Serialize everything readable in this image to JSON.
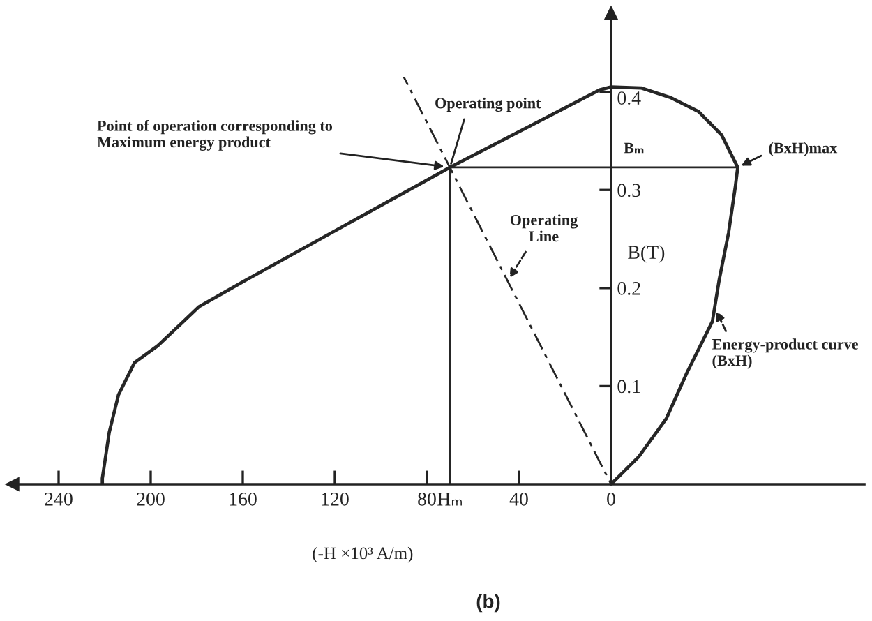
{
  "chart_data": {
    "type": "line",
    "xlabel": "(-H ×10³ A/m)",
    "ylabel": "B(T)",
    "xlim": [
      260,
      -110
    ],
    "ylim": [
      0,
      0.48
    ],
    "xticks": [
      240,
      200,
      160,
      120,
      80,
      {
        "value": 70,
        "label": "Hₘ"
      },
      40,
      0
    ],
    "yticks": [
      0.1,
      0.2,
      0.3,
      0.4
    ],
    "series": [
      {
        "color": "#262626",
        "x": [
          221,
          221,
          218,
          214,
          207,
          197,
          179,
          168.5,
          158,
          70,
          5,
          0,
          -13,
          -26,
          -38,
          -48,
          -55,
          -54,
          -51,
          -47,
          -44,
          -33,
          -24,
          -12,
          0
        ],
        "values": [
          0,
          0.006,
          0.053,
          0.091,
          0.124,
          0.141,
          0.181,
          0.195,
          0.209,
          0.323,
          0.402,
          0.405,
          0.404,
          0.394,
          0.38,
          0.356,
          0.323,
          0.304,
          0.256,
          0.209,
          0.166,
          0.114,
          0.067,
          0.028,
          0
        ]
      },
      {
        "color": "#262626",
        "x": [
          70,
          70,
          -55
        ],
        "values": [
          0,
          0.323,
          0.323
        ]
      },
      {
        "color": "#262626",
        "x": [
          0,
          90
        ],
        "values": [
          0,
          0.415
        ],
        "line_style": "dashed"
      }
    ],
    "annotations": [
      {
        "text": "Point of operation corresponding to\nMaximum energy product",
        "x": 70,
        "y": 0.323
      },
      {
        "text": "Operating point",
        "x": 70,
        "y": 0.323
      },
      {
        "text": "(BxH)max",
        "x": -55,
        "y": 0.323
      },
      {
        "text": "Operating\nLine",
        "x": 45,
        "y": 0.207
      },
      {
        "text": "Energy-product curve\n(BxH)",
        "x": -45,
        "y": 0.18
      },
      {
        "text": "Bₘ",
        "x": 0,
        "y": 0.323
      },
      "(b)"
    ]
  }
}
